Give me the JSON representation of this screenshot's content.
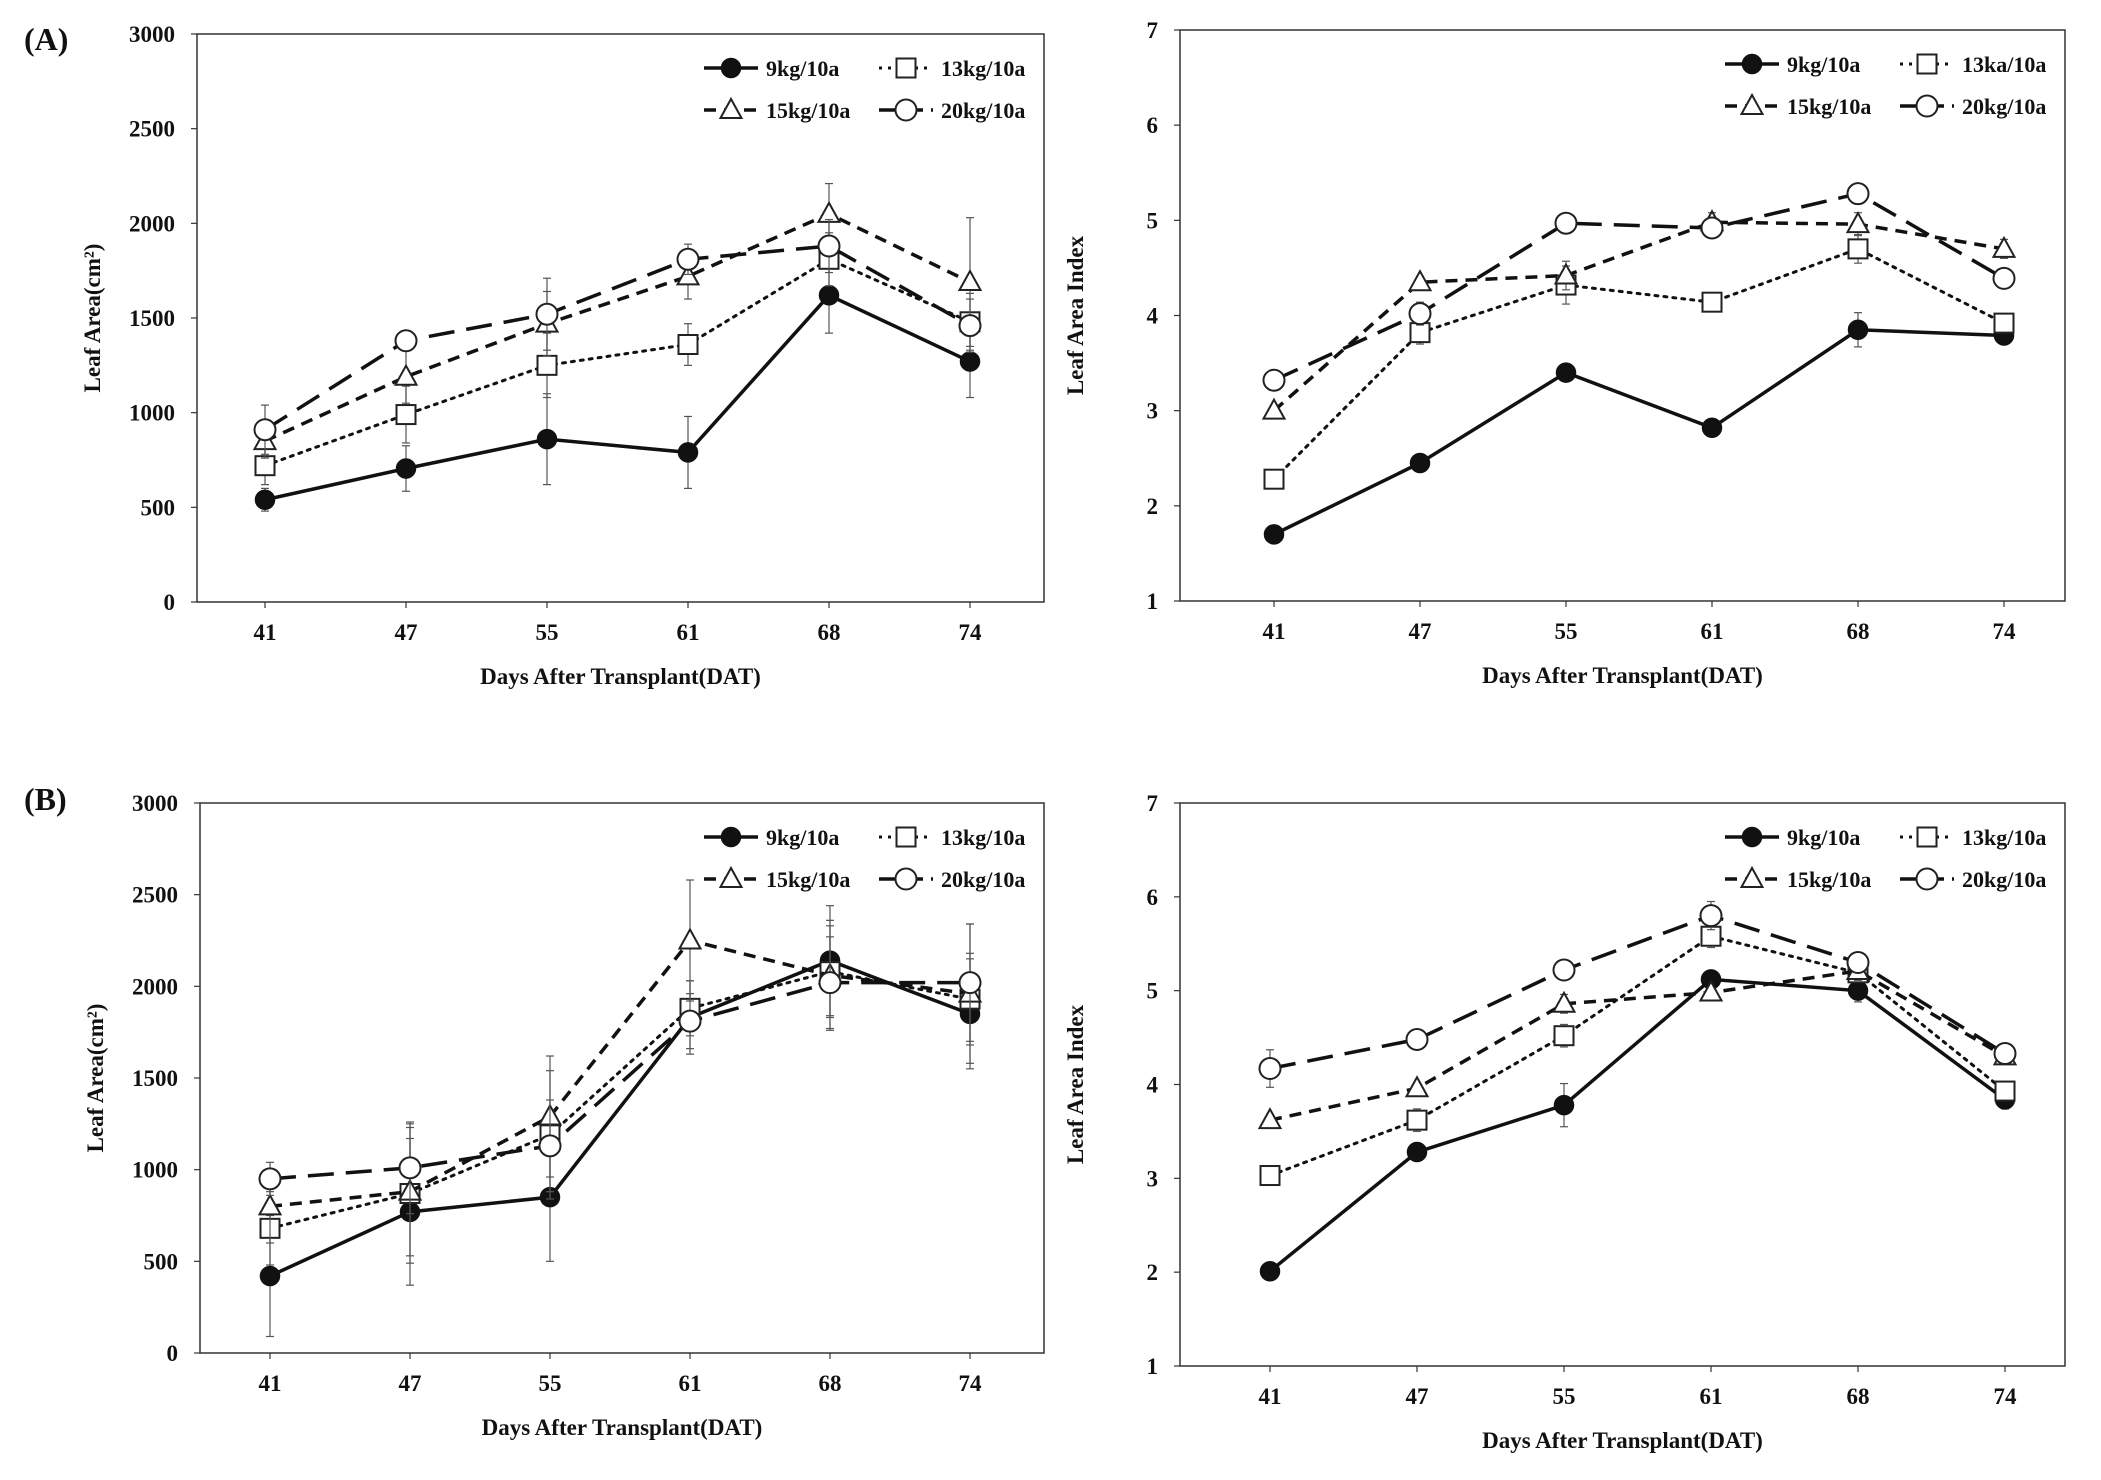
{
  "panel_labels": [
    "(A)",
    "(B)"
  ],
  "chart_data": [
    {
      "id": "A-left",
      "type": "line",
      "title": "",
      "xlabel": "Days After Transplant(DAT)",
      "ylabel": "Leaf Area(cm²)",
      "categories": [
        "41",
        "47",
        "55",
        "61",
        "68",
        "74"
      ],
      "ylim": [
        0,
        3000
      ],
      "yticks": [
        0,
        500,
        1000,
        1500,
        2000,
        2500,
        3000
      ],
      "legend_position": "top-right",
      "series": [
        {
          "name": "9kg/10a",
          "style": "solid",
          "marker": "filled-circle",
          "values": [
            540,
            705,
            860,
            790,
            1620,
            1270
          ],
          "err": [
            60,
            120,
            240,
            190,
            200,
            190
          ]
        },
        {
          "name": "13kg/10a",
          "style": "dotted",
          "marker": "square",
          "values": [
            720,
            990,
            1250,
            1360,
            1810,
            1480
          ],
          "err": [
            100,
            150,
            170,
            110,
            140,
            150
          ]
        },
        {
          "name": "15kg/10a",
          "style": "dashed",
          "marker": "triangle",
          "values": [
            850,
            1190,
            1470,
            1720,
            2050,
            1690
          ],
          "err": [
            90,
            140,
            170,
            120,
            160,
            340
          ]
        },
        {
          "name": "20kg/10a",
          "style": "longdash",
          "marker": "open-circle",
          "values": [
            910,
            1380,
            1520,
            1810,
            1880,
            1460
          ],
          "err": [
            130,
            40,
            190,
            80,
            140,
            140
          ]
        }
      ]
    },
    {
      "id": "A-right",
      "type": "line",
      "title": "",
      "xlabel": "Days After Transplant(DAT)",
      "ylabel": "Leaf Area Index",
      "categories": [
        "41",
        "47",
        "55",
        "61",
        "68",
        "74"
      ],
      "ylim": [
        1,
        7
      ],
      "yticks": [
        1,
        2,
        3,
        4,
        5,
        6,
        7
      ],
      "legend_position": "top-right",
      "series": [
        {
          "name": "9kg/10a",
          "style": "solid",
          "marker": "filled-circle",
          "values": [
            1.7,
            2.45,
            3.4,
            2.82,
            3.85,
            3.79
          ],
          "err": [
            0.05,
            0.06,
            0.08,
            0.06,
            0.18,
            0.06
          ]
        },
        {
          "name": "13ka/10a",
          "style": "dotted",
          "marker": "square",
          "values": [
            2.28,
            3.82,
            4.32,
            4.14,
            4.7,
            3.92
          ],
          "err": [
            0.1,
            0.12,
            0.2,
            0.1,
            0.15,
            0.08
          ]
        },
        {
          "name": "15kg/10a",
          "style": "dashed",
          "marker": "triangle",
          "values": [
            3.0,
            4.35,
            4.42,
            4.98,
            4.96,
            4.7
          ],
          "err": [
            0.05,
            0.06,
            0.15,
            0.1,
            0.12,
            0.1
          ]
        },
        {
          "name": "20kg/10a",
          "style": "longdash",
          "marker": "open-circle",
          "values": [
            3.32,
            4.02,
            4.97,
            4.92,
            5.28,
            4.39
          ],
          "err": [
            0.08,
            0.12,
            0.06,
            0.1,
            0.1,
            0.08
          ]
        }
      ]
    },
    {
      "id": "B-left",
      "type": "line",
      "title": "",
      "xlabel": "Days After Transplant(DAT)",
      "ylabel": "Leaf Area(cm²)",
      "categories": [
        "41",
        "47",
        "55",
        "61",
        "68",
        "74"
      ],
      "ylim": [
        0,
        3000
      ],
      "yticks": [
        0,
        500,
        1000,
        1500,
        2000,
        2500,
        3000
      ],
      "legend_position": "top-right",
      "series": [
        {
          "name": "9kg/10a",
          "style": "solid",
          "marker": "filled-circle",
          "values": [
            420,
            770,
            850,
            1830,
            2140,
            1850
          ],
          "err": [
            330,
            400,
            350,
            200,
            300,
            300
          ]
        },
        {
          "name": "13kg/10a",
          "style": "dotted",
          "marker": "square",
          "values": [
            680,
            870,
            1190,
            1880,
            2080,
            1930
          ],
          "err": [
            200,
            380,
            350,
            150,
            250,
            250
          ]
        },
        {
          "name": "15kg/10a",
          "style": "dashed",
          "marker": "triangle",
          "values": [
            800,
            880,
            1290,
            2250,
            2060,
            1960
          ],
          "err": [
            200,
            350,
            330,
            330,
            300,
            380
          ]
        },
        {
          "name": "20kg/10a",
          "style": "longdash",
          "marker": "open-circle",
          "values": [
            950,
            1010,
            1130,
            1810,
            2020,
            2020
          ],
          "err": [
            90,
            250,
            250,
            150,
            250,
            320
          ]
        }
      ]
    },
    {
      "id": "B-right",
      "type": "line",
      "title": "",
      "xlabel": "Days After Transplant(DAT)",
      "ylabel": "Leaf Area Index",
      "categories": [
        "41",
        "47",
        "55",
        "61",
        "68",
        "74"
      ],
      "ylim": [
        1,
        7
      ],
      "yticks": [
        1,
        2,
        3,
        4,
        5,
        6,
        7
      ],
      "legend_position": "top-right",
      "series": [
        {
          "name": "9kg/10a",
          "style": "solid",
          "marker": "filled-circle",
          "values": [
            2.01,
            3.28,
            3.78,
            5.12,
            5.0,
            3.84
          ],
          "err": [
            0.03,
            0.08,
            0.23,
            0.08,
            0.12,
            0.1
          ]
        },
        {
          "name": "13kg/10a",
          "style": "dotted",
          "marker": "square",
          "values": [
            3.03,
            3.62,
            4.52,
            5.58,
            5.19,
            3.93
          ],
          "err": [
            0.1,
            0.12,
            0.12,
            0.12,
            0.1,
            0.1
          ]
        },
        {
          "name": "15kg/10a",
          "style": "dashed",
          "marker": "triangle",
          "values": [
            3.62,
            3.96,
            4.86,
            4.98,
            5.21,
            4.3
          ],
          "err": [
            0.06,
            0.05,
            0.1,
            0.05,
            0.1,
            0.06
          ]
        },
        {
          "name": "20kg/10a",
          "style": "longdash",
          "marker": "open-circle",
          "values": [
            4.17,
            4.48,
            5.22,
            5.8,
            5.3,
            4.33
          ],
          "err": [
            0.2,
            0.08,
            0.08,
            0.15,
            0.06,
            0.06
          ]
        }
      ]
    }
  ]
}
